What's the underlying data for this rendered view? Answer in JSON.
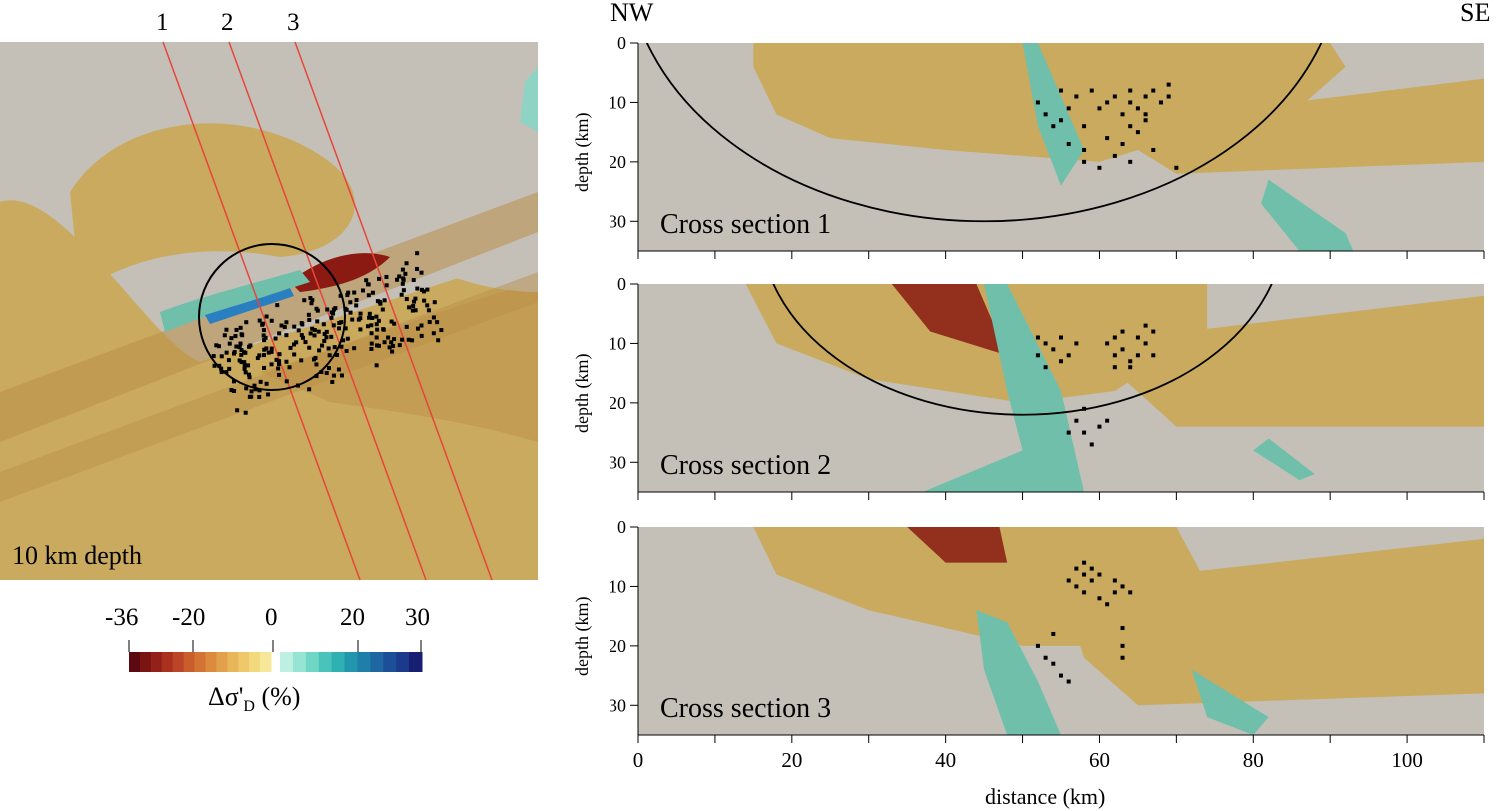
{
  "colors": {
    "background_gray": "#c4c0b8",
    "positive_tan": "#c9aa5f",
    "tan_dark": "#bf974e",
    "negative_red": "#8a1a12",
    "orange": "#d08a3c",
    "teal_light": "#8fd3c4",
    "teal": "#6fbfab",
    "blue": "#2a7fc0",
    "navy": "#141a6e",
    "profile_line": "#e8453a",
    "circle": "#000000",
    "event": "#000000"
  },
  "map": {
    "depth_label": "10 km depth",
    "profile_labels": [
      "1",
      "2",
      "3"
    ]
  },
  "orientation": {
    "left": "NW",
    "right": "SE"
  },
  "colorbar": {
    "tick_labels": [
      "-36",
      "-20",
      "0",
      "20",
      "30"
    ],
    "title": "Δσ'",
    "title_sub": "D",
    "title_unit": " (%)",
    "negative_colors": [
      "#5a0a10",
      "#7a1412",
      "#94201a",
      "#aa3020",
      "#bb4526",
      "#c95d2c",
      "#d47434",
      "#dc8a3e",
      "#e2a04a",
      "#e8b558",
      "#eec86a",
      "#f3d97e",
      "#f7e798"
    ],
    "positive_colors": [
      "#bdf0e2",
      "#96e4d4",
      "#6fd6c6",
      "#49c4ba",
      "#2fb0b2",
      "#2296ac",
      "#1f7fa8",
      "#1e67a2",
      "#1d4f98",
      "#1b3a8c",
      "#161f72"
    ]
  },
  "chart_data": [
    {
      "type": "heatmap",
      "title": "Cross section 1",
      "xlabel": "",
      "ylabel": "depth (km)",
      "xlim": [
        0,
        110
      ],
      "ylim": [
        35,
        0
      ],
      "y_ticks": [
        "0",
        "10",
        "20",
        "30"
      ],
      "events": [
        [
          52,
          10
        ],
        [
          53,
          12
        ],
        [
          54,
          14
        ],
        [
          55,
          8
        ],
        [
          55,
          13
        ],
        [
          56,
          11
        ],
        [
          57,
          9
        ],
        [
          58,
          14
        ],
        [
          59,
          8
        ],
        [
          60,
          11
        ],
        [
          61,
          10
        ],
        [
          62,
          9
        ],
        [
          63,
          12
        ],
        [
          64,
          8
        ],
        [
          64,
          10
        ],
        [
          65,
          11
        ],
        [
          66,
          9
        ],
        [
          67,
          8
        ],
        [
          68,
          10
        ],
        [
          69,
          9
        ],
        [
          66,
          13
        ],
        [
          65,
          15
        ],
        [
          63,
          17
        ],
        [
          62,
          19
        ],
        [
          60,
          21
        ],
        [
          58,
          20
        ],
        [
          64,
          20
        ],
        [
          67,
          18
        ],
        [
          70,
          21
        ],
        [
          56,
          17
        ],
        [
          58,
          18
        ],
        [
          61,
          16
        ],
        [
          64,
          14
        ],
        [
          66,
          12
        ],
        [
          69,
          7
        ]
      ]
    },
    {
      "type": "heatmap",
      "title": "Cross section 2",
      "xlabel": "",
      "ylabel": "depth (km)",
      "xlim": [
        0,
        110
      ],
      "ylim": [
        35,
        0
      ],
      "y_ticks": [
        "0",
        "10",
        "20",
        "30"
      ],
      "events": [
        [
          52,
          9
        ],
        [
          52,
          12
        ],
        [
          53,
          10
        ],
        [
          53,
          14
        ],
        [
          54,
          11
        ],
        [
          55,
          9
        ],
        [
          55,
          13
        ],
        [
          56,
          12
        ],
        [
          57,
          10
        ],
        [
          61,
          10
        ],
        [
          62,
          9
        ],
        [
          62,
          12
        ],
        [
          63,
          8
        ],
        [
          63,
          11
        ],
        [
          64,
          13
        ],
        [
          65,
          9
        ],
        [
          65,
          12
        ],
        [
          66,
          10
        ],
        [
          67,
          8
        ],
        [
          67,
          12
        ],
        [
          64,
          14
        ],
        [
          62,
          14
        ],
        [
          58,
          21
        ],
        [
          57,
          23
        ],
        [
          56,
          25
        ],
        [
          58,
          25
        ],
        [
          59,
          27
        ],
        [
          61,
          23
        ],
        [
          60,
          24
        ],
        [
          66,
          7
        ]
      ]
    },
    {
      "type": "heatmap",
      "title": "Cross section 3",
      "xlabel": "distance (km)",
      "ylabel": "depth (km)",
      "xlim": [
        0,
        110
      ],
      "ylim": [
        35,
        0
      ],
      "x_ticks": [
        "0",
        "20",
        "40",
        "60",
        "80",
        "100"
      ],
      "y_ticks": [
        "0",
        "10",
        "20",
        "30"
      ],
      "events": [
        [
          56,
          9
        ],
        [
          57,
          7
        ],
        [
          57,
          10
        ],
        [
          58,
          8
        ],
        [
          58,
          11
        ],
        [
          59,
          7
        ],
        [
          59,
          9
        ],
        [
          60,
          12
        ],
        [
          60,
          8
        ],
        [
          61,
          13
        ],
        [
          62,
          9
        ],
        [
          62,
          11
        ],
        [
          63,
          10
        ],
        [
          64,
          11
        ],
        [
          63,
          17
        ],
        [
          63,
          20
        ],
        [
          63,
          22
        ],
        [
          52,
          20
        ],
        [
          53,
          22
        ],
        [
          54,
          23
        ],
        [
          55,
          25
        ],
        [
          56,
          26
        ],
        [
          54,
          18
        ],
        [
          58,
          6
        ]
      ]
    }
  ]
}
